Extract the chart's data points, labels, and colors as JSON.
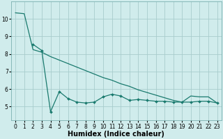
{
  "background_color": "#d0ecec",
  "grid_color": "#a8cccc",
  "line_color": "#1a7a6e",
  "xlabel": "Humidex (Indice chaleur)",
  "xlim": [
    -0.5,
    23.5
  ],
  "ylim": [
    4.2,
    11.0
  ],
  "yticks": [
    5,
    6,
    7,
    8,
    9,
    10
  ],
  "xticks": [
    0,
    1,
    2,
    3,
    4,
    5,
    6,
    7,
    8,
    9,
    10,
    11,
    12,
    13,
    14,
    15,
    16,
    17,
    18,
    19,
    20,
    21,
    22,
    23
  ],
  "line1_x": [
    0,
    1,
    2,
    3,
    4,
    5,
    6,
    7,
    8,
    9,
    10,
    11,
    12,
    13,
    14,
    15,
    16,
    17,
    18,
    19,
    20,
    21,
    22,
    23
  ],
  "line1_y": [
    10.35,
    10.3,
    8.25,
    8.1,
    7.85,
    7.65,
    7.45,
    7.25,
    7.05,
    6.85,
    6.65,
    6.5,
    6.3,
    6.15,
    5.95,
    5.8,
    5.65,
    5.5,
    5.35,
    5.25,
    5.6,
    5.55,
    5.55,
    5.2
  ],
  "line2_x": [
    2,
    3,
    4,
    5,
    6,
    7,
    8,
    9,
    10,
    11,
    12,
    13,
    14,
    15,
    16,
    17,
    18,
    19,
    20,
    21,
    22,
    23
  ],
  "line2_y": [
    8.55,
    8.2,
    4.7,
    5.85,
    5.45,
    5.25,
    5.2,
    5.25,
    5.55,
    5.7,
    5.6,
    5.35,
    5.4,
    5.35,
    5.3,
    5.3,
    5.25,
    5.25,
    5.25,
    5.3,
    5.3,
    5.2
  ],
  "xlabel_fontsize": 7,
  "tick_fontsize": 5.5
}
